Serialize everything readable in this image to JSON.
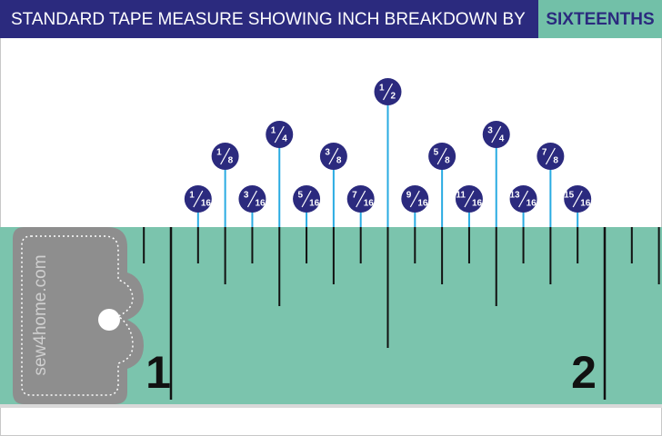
{
  "header": {
    "title": "STANDARD TAPE MEASURE SHOWING INCH BREAKDOWN BY",
    "highlight": "SIXTEENTHS"
  },
  "marks": [
    {
      "numerator": "1",
      "denominator": "16"
    },
    {
      "numerator": "1",
      "denominator": "8"
    },
    {
      "numerator": "3",
      "denominator": "16"
    },
    {
      "numerator": "1",
      "denominator": "4"
    },
    {
      "numerator": "5",
      "denominator": "16"
    },
    {
      "numerator": "3",
      "denominator": "8"
    },
    {
      "numerator": "7",
      "denominator": "16"
    },
    {
      "numerator": "1",
      "denominator": "2"
    },
    {
      "numerator": "9",
      "denominator": "16"
    },
    {
      "numerator": "5",
      "denominator": "8"
    },
    {
      "numerator": "11",
      "denominator": "16"
    },
    {
      "numerator": "3",
      "denominator": "4"
    },
    {
      "numerator": "13",
      "denominator": "16"
    },
    {
      "numerator": "7",
      "denominator": "8"
    },
    {
      "numerator": "15",
      "denominator": "16"
    }
  ],
  "tape": {
    "brand": "sew4home.com",
    "inch_labels": [
      "1",
      "2"
    ]
  }
}
